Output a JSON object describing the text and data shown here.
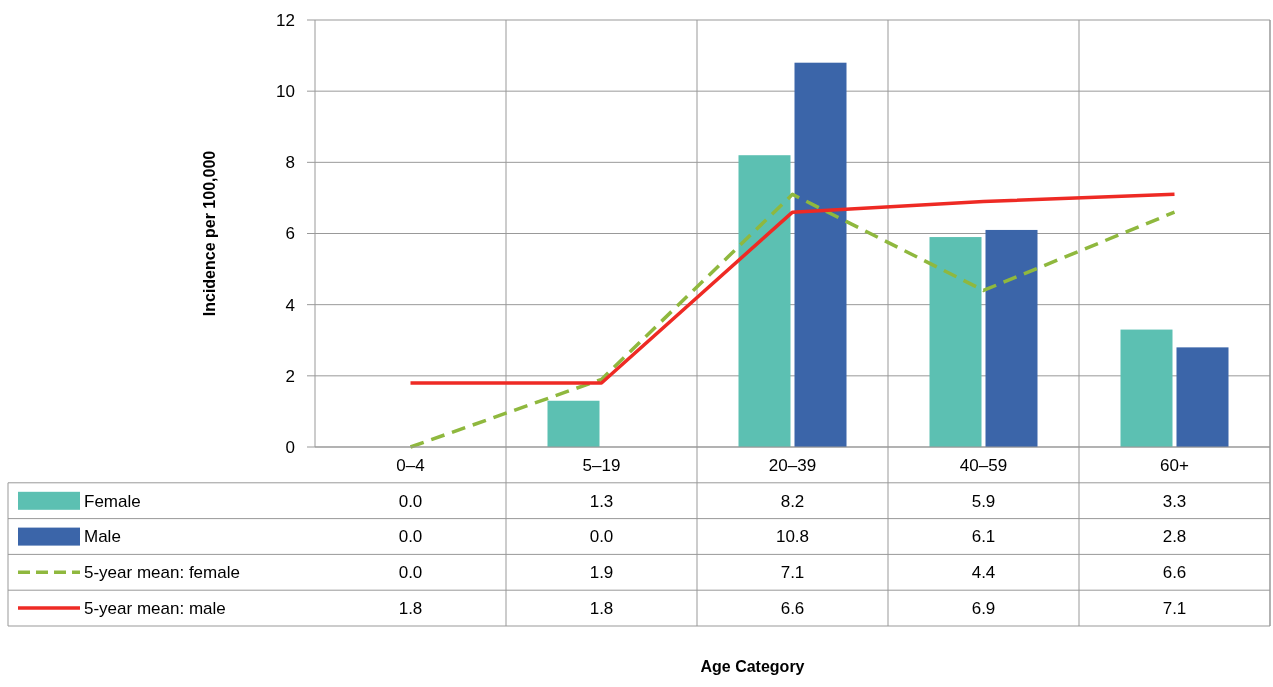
{
  "chart_data": {
    "type": "bar",
    "annotations": [
      "Age Category"
    ],
    "ylabel": "Incidence per 100,000",
    "categories": [
      "0–4",
      "5–19",
      "20–39",
      "40–59",
      "60+"
    ],
    "ylim": [
      0,
      12
    ],
    "yticks": [
      0,
      2,
      4,
      6,
      8,
      10,
      12
    ],
    "grid": "y",
    "legend": "bottom left",
    "marker": "none",
    "series": [
      {
        "name": "Female",
        "color": "#5cc0b2",
        "values": [
          0.0,
          1.3,
          8.2,
          5.9,
          3.3
        ],
        "value_labels": [
          "0.0",
          "1.3",
          "8.2",
          "5.9",
          "3.3"
        ]
      },
      {
        "name": "Male",
        "color": "#3b65a9",
        "values": [
          0.0,
          0.0,
          10.8,
          6.1,
          2.8
        ],
        "value_labels": [
          "0.0",
          "0.0",
          "10.8",
          "6.1",
          "2.8"
        ]
      },
      {
        "name": "5-year mean: female",
        "type": "line",
        "line_style": "dashed",
        "color": "#8fb83e",
        "values": [
          0.0,
          1.9,
          7.1,
          4.4,
          6.6
        ],
        "value_labels": [
          "0.0",
          "1.9",
          "7.1",
          "4.4",
          "6.6"
        ]
      },
      {
        "name": "5-year mean: male",
        "type": "line",
        "line_style": "solid",
        "color": "#ee2a24",
        "values": [
          1.8,
          1.8,
          6.6,
          6.9,
          7.1
        ],
        "value_labels": [
          "1.8",
          "1.8",
          "6.6",
          "6.9",
          "7.1"
        ]
      }
    ]
  }
}
